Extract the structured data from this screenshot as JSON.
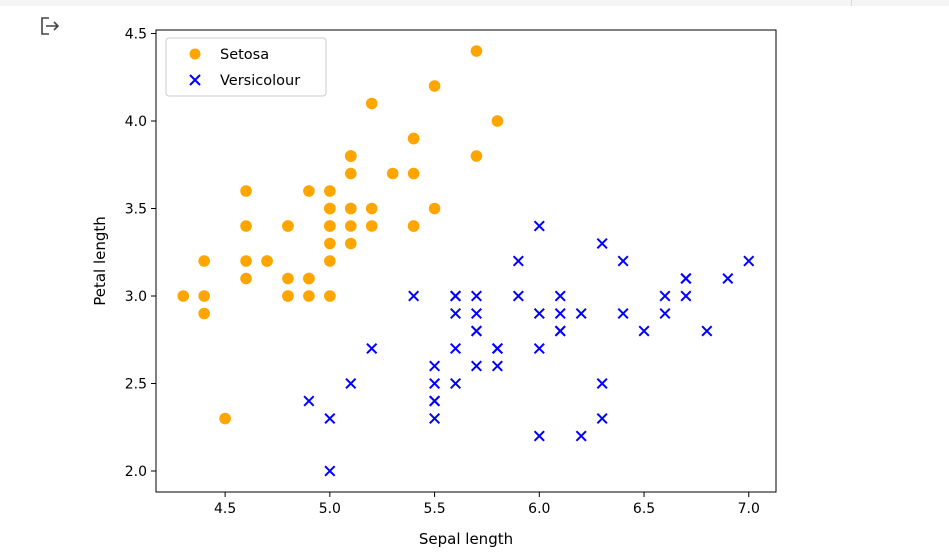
{
  "chart_data": {
    "type": "scatter",
    "xlabel": "Sepal length",
    "ylabel": "Petal length",
    "xlim": [
      4.17,
      7.13
    ],
    "ylim": [
      1.88,
      4.52
    ],
    "xticks": [
      "4.5",
      "5.0",
      "5.5",
      "6.0",
      "6.5",
      "7.0"
    ],
    "yticks": [
      "2.0",
      "2.5",
      "3.0",
      "3.5",
      "4.0",
      "4.5"
    ],
    "grid": false,
    "legend_position": "top-left",
    "series": [
      {
        "name": "Setosa",
        "marker": "circle",
        "color": "#ffa500",
        "points": [
          [
            5.1,
            3.5
          ],
          [
            4.9,
            3.0
          ],
          [
            4.7,
            3.2
          ],
          [
            4.6,
            3.1
          ],
          [
            5.0,
            3.6
          ],
          [
            5.4,
            3.9
          ],
          [
            4.6,
            3.4
          ],
          [
            5.0,
            3.4
          ],
          [
            4.4,
            2.9
          ],
          [
            4.9,
            3.1
          ],
          [
            5.4,
            3.7
          ],
          [
            4.8,
            3.4
          ],
          [
            4.8,
            3.0
          ],
          [
            4.3,
            3.0
          ],
          [
            5.8,
            4.0
          ],
          [
            5.7,
            4.4
          ],
          [
            5.4,
            3.9
          ],
          [
            5.1,
            3.5
          ],
          [
            5.7,
            3.8
          ],
          [
            5.1,
            3.8
          ],
          [
            5.4,
            3.4
          ],
          [
            5.1,
            3.7
          ],
          [
            4.6,
            3.6
          ],
          [
            5.1,
            3.3
          ],
          [
            4.8,
            3.4
          ],
          [
            5.0,
            3.0
          ],
          [
            5.0,
            3.4
          ],
          [
            5.2,
            3.5
          ],
          [
            5.2,
            3.4
          ],
          [
            4.7,
            3.2
          ],
          [
            4.8,
            3.1
          ],
          [
            5.4,
            3.4
          ],
          [
            5.2,
            4.1
          ],
          [
            5.5,
            4.2
          ],
          [
            4.9,
            3.1
          ],
          [
            5.0,
            3.2
          ],
          [
            5.5,
            3.5
          ],
          [
            4.9,
            3.6
          ],
          [
            4.4,
            3.0
          ],
          [
            5.1,
            3.4
          ],
          [
            5.0,
            3.5
          ],
          [
            4.5,
            2.3
          ],
          [
            4.4,
            3.2
          ],
          [
            5.0,
            3.5
          ],
          [
            5.1,
            3.8
          ],
          [
            4.8,
            3.0
          ],
          [
            5.1,
            3.8
          ],
          [
            4.6,
            3.2
          ],
          [
            5.3,
            3.7
          ],
          [
            5.0,
            3.3
          ]
        ]
      },
      {
        "name": "Versicolour",
        "marker": "x",
        "color": "#0000ff",
        "points": [
          [
            7.0,
            3.2
          ],
          [
            6.4,
            3.2
          ],
          [
            6.9,
            3.1
          ],
          [
            5.5,
            2.3
          ],
          [
            6.5,
            2.8
          ],
          [
            5.7,
            2.8
          ],
          [
            6.3,
            3.3
          ],
          [
            4.9,
            2.4
          ],
          [
            6.6,
            2.9
          ],
          [
            5.2,
            2.7
          ],
          [
            5.0,
            2.0
          ],
          [
            5.9,
            3.0
          ],
          [
            6.0,
            2.2
          ],
          [
            6.1,
            2.9
          ],
          [
            5.6,
            2.9
          ],
          [
            6.7,
            3.1
          ],
          [
            5.6,
            3.0
          ],
          [
            5.8,
            2.7
          ],
          [
            6.2,
            2.2
          ],
          [
            5.6,
            2.5
          ],
          [
            5.9,
            3.2
          ],
          [
            6.1,
            2.8
          ],
          [
            6.3,
            2.5
          ],
          [
            6.1,
            2.8
          ],
          [
            6.4,
            2.9
          ],
          [
            6.6,
            3.0
          ],
          [
            6.8,
            2.8
          ],
          [
            6.7,
            3.0
          ],
          [
            6.0,
            2.9
          ],
          [
            5.7,
            2.6
          ],
          [
            5.5,
            2.4
          ],
          [
            5.5,
            2.4
          ],
          [
            5.8,
            2.7
          ],
          [
            6.0,
            2.7
          ],
          [
            5.4,
            3.0
          ],
          [
            6.0,
            3.4
          ],
          [
            6.7,
            3.1
          ],
          [
            6.3,
            2.3
          ],
          [
            5.6,
            3.0
          ],
          [
            5.5,
            2.5
          ],
          [
            5.5,
            2.6
          ],
          [
            6.1,
            3.0
          ],
          [
            5.8,
            2.6
          ],
          [
            5.0,
            2.3
          ],
          [
            5.6,
            2.7
          ],
          [
            5.7,
            3.0
          ],
          [
            5.7,
            2.9
          ],
          [
            6.2,
            2.9
          ],
          [
            5.1,
            2.5
          ],
          [
            5.7,
            2.8
          ]
        ]
      }
    ]
  }
}
